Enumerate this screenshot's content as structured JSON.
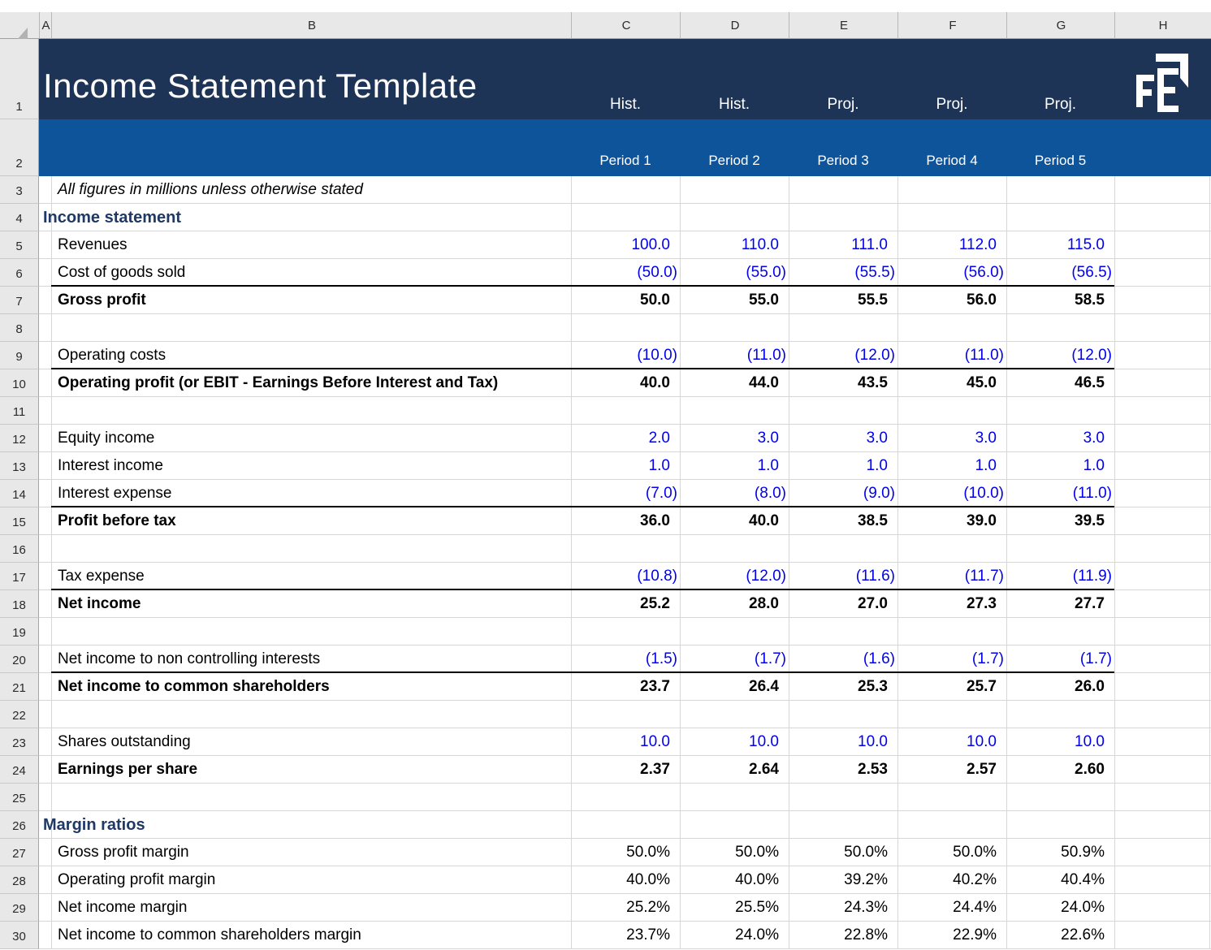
{
  "grid": {
    "columns": [
      "A",
      "B",
      "C",
      "D",
      "E",
      "F",
      "G",
      "H"
    ],
    "first_row": 1,
    "last_row": 30
  },
  "banner": {
    "title": "Income Statement Template",
    "logo": "FE-logo",
    "period_types": [
      "Hist.",
      "Hist.",
      "Proj.",
      "Proj.",
      "Proj."
    ],
    "periods": [
      "Period 1",
      "Period 2",
      "Period 3",
      "Period 4",
      "Period 5"
    ],
    "colors": {
      "dark_navy": "#1D3457",
      "medium_blue": "#0E549B"
    }
  },
  "colors": {
    "input_blue": "#0000EE",
    "heading_navy": "#1F3864",
    "gridline": "#D6D6D6",
    "header_bg": "#E8E8E8"
  },
  "sheet": {
    "rows": [
      {
        "n": 3,
        "label": "All figures in millions unless otherwise stated",
        "style": "note"
      },
      {
        "n": 4,
        "label": "Income statement",
        "style": "heading"
      },
      {
        "n": 5,
        "label": "Revenues",
        "style": "label",
        "vstyle": "input",
        "values": [
          "100.0",
          "110.0",
          "111.0",
          "112.0",
          "115.0"
        ]
      },
      {
        "n": 6,
        "label": "Cost of goods sold",
        "style": "label",
        "vstyle": "input",
        "values": [
          "(50.0)",
          "(55.0)",
          "(55.5)",
          "(56.0)",
          "(56.5)"
        ],
        "border": true
      },
      {
        "n": 7,
        "label": "Gross profit",
        "style": "bold",
        "vstyle": "bold",
        "values": [
          "50.0",
          "55.0",
          "55.5",
          "56.0",
          "58.5"
        ]
      },
      {
        "n": 8
      },
      {
        "n": 9,
        "label": "Operating costs",
        "style": "label",
        "vstyle": "input",
        "values": [
          "(10.0)",
          "(11.0)",
          "(12.0)",
          "(11.0)",
          "(12.0)"
        ],
        "border": true
      },
      {
        "n": 10,
        "label": "Operating profit (or EBIT - Earnings Before Interest and Tax)",
        "style": "bold",
        "vstyle": "bold",
        "values": [
          "40.0",
          "44.0",
          "43.5",
          "45.0",
          "46.5"
        ]
      },
      {
        "n": 11
      },
      {
        "n": 12,
        "label": "Equity income",
        "style": "label",
        "vstyle": "input",
        "values": [
          "2.0",
          "3.0",
          "3.0",
          "3.0",
          "3.0"
        ]
      },
      {
        "n": 13,
        "label": "Interest income",
        "style": "label",
        "vstyle": "input",
        "values": [
          "1.0",
          "1.0",
          "1.0",
          "1.0",
          "1.0"
        ]
      },
      {
        "n": 14,
        "label": "Interest expense",
        "style": "label",
        "vstyle": "input",
        "values": [
          "(7.0)",
          "(8.0)",
          "(9.0)",
          "(10.0)",
          "(11.0)"
        ],
        "border": true
      },
      {
        "n": 15,
        "label": "Profit before tax",
        "style": "bold",
        "vstyle": "bold",
        "values": [
          "36.0",
          "40.0",
          "38.5",
          "39.0",
          "39.5"
        ]
      },
      {
        "n": 16
      },
      {
        "n": 17,
        "label": "Tax expense",
        "style": "label",
        "vstyle": "input",
        "values": [
          "(10.8)",
          "(12.0)",
          "(11.6)",
          "(11.7)",
          "(11.9)"
        ],
        "border": true
      },
      {
        "n": 18,
        "label": "Net income",
        "style": "bold",
        "vstyle": "bold",
        "values": [
          "25.2",
          "28.0",
          "27.0",
          "27.3",
          "27.7"
        ]
      },
      {
        "n": 19
      },
      {
        "n": 20,
        "label": "Net income to non controlling interests",
        "style": "label",
        "vstyle": "input",
        "values": [
          "(1.5)",
          "(1.7)",
          "(1.6)",
          "(1.7)",
          "(1.7)"
        ],
        "border": true
      },
      {
        "n": 21,
        "label": "Net income to common shareholders",
        "style": "bold",
        "vstyle": "bold",
        "values": [
          "23.7",
          "26.4",
          "25.3",
          "25.7",
          "26.0"
        ]
      },
      {
        "n": 22
      },
      {
        "n": 23,
        "label": "Shares outstanding",
        "style": "label",
        "vstyle": "input",
        "values": [
          "10.0",
          "10.0",
          "10.0",
          "10.0",
          "10.0"
        ]
      },
      {
        "n": 24,
        "label": "Earnings per share",
        "style": "bold",
        "vstyle": "bold",
        "values": [
          "2.37",
          "2.64",
          "2.53",
          "2.57",
          "2.60"
        ]
      },
      {
        "n": 25
      },
      {
        "n": 26,
        "label": "Margin ratios",
        "style": "heading"
      },
      {
        "n": 27,
        "label": "Gross profit margin",
        "style": "label",
        "vstyle": "calc",
        "values": [
          "50.0%",
          "50.0%",
          "50.0%",
          "50.0%",
          "50.9%"
        ]
      },
      {
        "n": 28,
        "label": "Operating profit margin",
        "style": "label",
        "vstyle": "calc",
        "values": [
          "40.0%",
          "40.0%",
          "39.2%",
          "40.2%",
          "40.4%"
        ]
      },
      {
        "n": 29,
        "label": "Net income margin",
        "style": "label",
        "vstyle": "calc",
        "values": [
          "25.2%",
          "25.5%",
          "24.3%",
          "24.4%",
          "24.0%"
        ]
      },
      {
        "n": 30,
        "label": "Net income to common shareholders margin",
        "style": "label",
        "vstyle": "calc",
        "values": [
          "23.7%",
          "24.0%",
          "22.8%",
          "22.9%",
          "22.6%"
        ]
      }
    ]
  }
}
